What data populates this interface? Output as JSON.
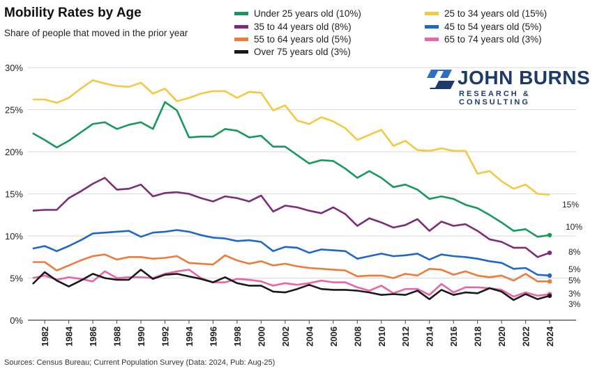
{
  "chart_data": {
    "type": "line",
    "title": "Mobility Rates by Age",
    "subtitle": "Share of people that moved in the prior year",
    "source": "Sources: Census Bureau; Current Population Survey (Data: 2024, Pub: Aug-25)",
    "xlabel": "",
    "ylabel": "",
    "ylim": [
      0,
      30
    ],
    "yticks": [
      "0%",
      "5%",
      "10%",
      "15%",
      "20%",
      "25%",
      "30%"
    ],
    "xticks": [
      "1982",
      "1984",
      "1986",
      "1988",
      "1990",
      "1992",
      "1994",
      "1996",
      "1998",
      "2000",
      "2002",
      "2004",
      "2006",
      "2008",
      "2010",
      "2012",
      "2014",
      "2016",
      "2018",
      "2020",
      "2022",
      "2024"
    ],
    "x": [
      1981,
      1982,
      1983,
      1984,
      1985,
      1986,
      1987,
      1988,
      1989,
      1990,
      1991,
      1992,
      1993,
      1994,
      1995,
      1996,
      1997,
      1998,
      1999,
      2000,
      2001,
      2002,
      2003,
      2004,
      2005,
      2006,
      2007,
      2008,
      2009,
      2010,
      2011,
      2012,
      2013,
      2014,
      2015,
      2016,
      2017,
      2018,
      2019,
      2020,
      2021,
      2022,
      2023,
      2024
    ],
    "series": [
      {
        "name": "Under 25 years old (10%)",
        "color": "#16995b",
        "end_label": "10%",
        "values": [
          22.2,
          21.4,
          20.5,
          21.3,
          22.3,
          23.3,
          23.5,
          22.7,
          23.2,
          23.5,
          22.7,
          25.9,
          24.9,
          21.7,
          21.8,
          21.8,
          22.7,
          22.5,
          21.7,
          21.9,
          20.6,
          20.6,
          19.6,
          18.6,
          19.0,
          18.9,
          18.0,
          16.9,
          17.7,
          16.9,
          15.8,
          16.1,
          15.5,
          14.4,
          14.7,
          14.4,
          13.7,
          13.3,
          12.5,
          11.6,
          10.6,
          10.8,
          9.9,
          10.1
        ]
      },
      {
        "name": "25 to 34 years old (15%)",
        "color": "#f5c842",
        "end_label": "15%",
        "values": [
          26.2,
          26.2,
          25.8,
          26.4,
          27.5,
          28.5,
          28.1,
          27.8,
          27.7,
          28.2,
          26.9,
          27.5,
          26.0,
          26.4,
          26.9,
          27.2,
          27.2,
          26.4,
          27.1,
          27.0,
          24.9,
          25.5,
          23.7,
          23.3,
          24.1,
          23.6,
          22.8,
          21.4,
          22.0,
          22.6,
          20.7,
          21.3,
          20.2,
          20.1,
          20.4,
          20.1,
          20.1,
          17.4,
          17.7,
          16.5,
          15.6,
          16.1,
          15.0,
          14.9
        ]
      },
      {
        "name": "35 to 44 years old (8%)",
        "color": "#7b2d78",
        "end_label": "8%",
        "values": [
          13.0,
          13.1,
          13.1,
          14.5,
          15.3,
          16.2,
          16.9,
          15.5,
          15.6,
          16.1,
          14.7,
          15.1,
          15.2,
          15.0,
          14.5,
          14.1,
          14.7,
          14.5,
          14.1,
          14.8,
          12.9,
          13.6,
          13.4,
          13.0,
          12.7,
          13.4,
          12.6,
          11.2,
          12.1,
          11.6,
          11.0,
          11.3,
          12.0,
          10.6,
          11.7,
          11.2,
          11.4,
          10.6,
          9.6,
          9.3,
          8.6,
          8.6,
          7.5,
          8.0
        ]
      },
      {
        "name": "45 to 54 years old (5%)",
        "color": "#2068c8",
        "end_label": "5%",
        "values": [
          8.5,
          8.8,
          8.2,
          8.8,
          9.5,
          10.3,
          10.4,
          10.5,
          10.6,
          9.9,
          10.4,
          10.5,
          10.7,
          10.5,
          10.1,
          9.8,
          9.7,
          9.4,
          9.5,
          9.3,
          8.2,
          8.7,
          8.6,
          8.0,
          8.4,
          8.3,
          8.2,
          7.3,
          7.6,
          7.9,
          7.6,
          7.7,
          7.9,
          7.2,
          7.8,
          7.6,
          7.5,
          7.3,
          7.0,
          6.8,
          6.1,
          6.2,
          5.4,
          5.3
        ]
      },
      {
        "name": "55 to 64 years old (5%)",
        "color": "#ee7a3c",
        "end_label": "5%",
        "values": [
          6.9,
          6.9,
          5.9,
          6.5,
          7.1,
          7.6,
          7.8,
          7.2,
          7.5,
          7.5,
          7.3,
          7.4,
          7.6,
          6.8,
          6.7,
          6.6,
          7.7,
          7.1,
          6.7,
          7.0,
          6.5,
          6.7,
          6.4,
          6.2,
          6.1,
          6.0,
          5.9,
          5.2,
          5.3,
          5.3,
          5.0,
          5.5,
          5.3,
          6.1,
          6.0,
          5.4,
          5.8,
          5.3,
          5.1,
          5.3,
          4.7,
          5.5,
          4.6,
          4.6
        ]
      },
      {
        "name": "65 to 74 years old (3%)",
        "color": "#e864a8",
        "end_label": "3%",
        "values": [
          5.0,
          5.3,
          4.8,
          5.1,
          4.9,
          4.6,
          5.8,
          5.0,
          5.1,
          5.1,
          5.0,
          5.5,
          5.8,
          6.0,
          5.0,
          4.5,
          4.5,
          4.9,
          4.8,
          4.6,
          4.1,
          4.4,
          4.2,
          4.4,
          4.7,
          4.5,
          4.5,
          3.9,
          3.5,
          4.1,
          3.2,
          3.7,
          3.7,
          3.0,
          4.3,
          3.3,
          3.9,
          3.9,
          3.8,
          3.6,
          2.8,
          3.3,
          2.9,
          3.1
        ]
      },
      {
        "name": "Over 75 years old (3%)",
        "color": "#1a1a1a",
        "end_label": "3%",
        "values": [
          4.3,
          5.7,
          4.7,
          4.0,
          4.7,
          5.5,
          5.0,
          4.8,
          4.8,
          6.0,
          4.9,
          5.4,
          5.5,
          5.2,
          4.9,
          4.5,
          5.1,
          4.4,
          4.1,
          4.1,
          3.4,
          3.3,
          3.7,
          4.2,
          3.7,
          3.6,
          3.6,
          3.5,
          3.3,
          3.0,
          3.1,
          3.0,
          3.5,
          2.5,
          3.6,
          3.0,
          3.3,
          3.2,
          3.8,
          3.4,
          2.4,
          3.1,
          2.5,
          2.9
        ]
      }
    ]
  },
  "logo": {
    "name": "JOHN BURNS",
    "sub": "RESEARCH & CONSULTING"
  }
}
